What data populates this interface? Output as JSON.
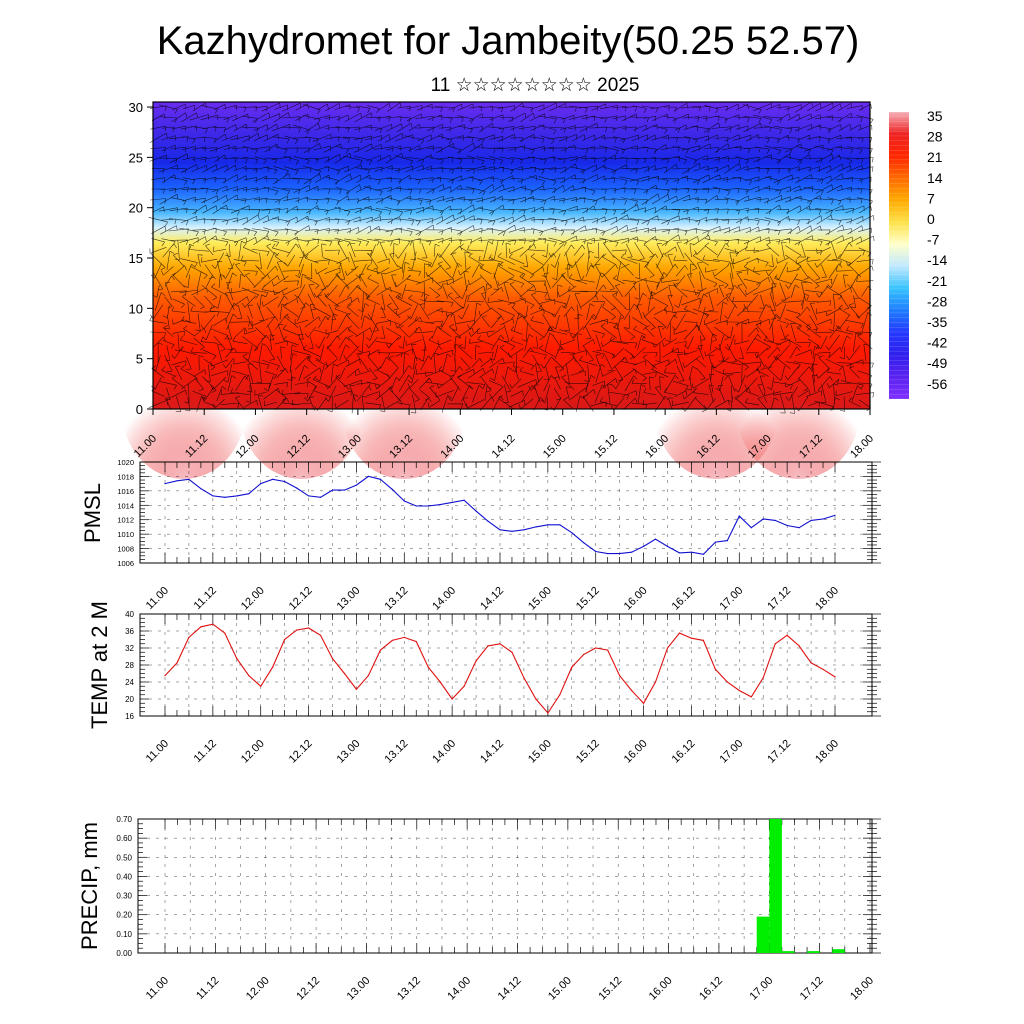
{
  "title": "Kazhydromet for Jambeity(50.25 52.57)",
  "subtitle": "11 ☆☆☆☆☆☆☆☆ 2025",
  "time_labels": [
    "11.00",
    "11.12",
    "12.00",
    "12.12",
    "13.00",
    "13.12",
    "14.00",
    "14.12",
    "15.00",
    "15.12",
    "16.00",
    "16.12",
    "17.00",
    "17.12",
    "18.00"
  ],
  "colors": {
    "pmsl_line": "#1010d0",
    "temp_line": "#e01010",
    "precip_bar": "#00ee00",
    "frame": "#000000"
  },
  "chart_data": [
    {
      "type": "heatmap",
      "name": "temperature-cross-section",
      "y_ticks": [
        "0",
        "5",
        "10",
        "15",
        "20",
        "25",
        "30"
      ],
      "ylim": [
        0,
        30.5
      ],
      "colorbar_labels": [
        "35",
        "28",
        "21",
        "14",
        "7",
        "0",
        "-7",
        "-14",
        "-21",
        "-28",
        "-35",
        "-42",
        "-49",
        "-56"
      ],
      "colorbar_stops": [
        "#f4b0b8",
        "#ee2222",
        "#ff2600",
        "#ff6a00",
        "#ffaa00",
        "#ffe24a",
        "#ffffcc",
        "#bfe8ff",
        "#36c2ff",
        "#1e7cff",
        "#2438ff",
        "#3020ee",
        "#5a22f0",
        "#8030ff"
      ],
      "profile": [
        {
          "z": 0,
          "color": "#d81818"
        },
        {
          "z": 6,
          "color": "#ff1a00"
        },
        {
          "z": 11,
          "color": "#ff5a00"
        },
        {
          "z": 14,
          "color": "#ffa500"
        },
        {
          "z": 16.5,
          "color": "#ffec5a"
        },
        {
          "z": 18,
          "color": "#d8f2ff"
        },
        {
          "z": 19.5,
          "color": "#4ab8ff"
        },
        {
          "z": 22,
          "color": "#1a60ff"
        },
        {
          "z": 24.5,
          "color": "#1828e8"
        },
        {
          "z": 27,
          "color": "#3a28e8"
        },
        {
          "z": 30.5,
          "color": "#6a2cf0"
        }
      ]
    },
    {
      "type": "line",
      "name": "pmsl",
      "ylabel": "PMSL",
      "y_ticks": [
        "1006",
        "1008",
        "1010",
        "1012",
        "1014",
        "1016",
        "1018",
        "1020"
      ],
      "ylim": [
        1006,
        1020
      ],
      "x_hours": [
        0,
        3,
        6,
        9,
        12,
        15,
        18,
        21,
        24,
        27,
        30,
        33,
        36,
        39,
        42,
        45,
        48,
        51,
        54,
        57,
        60,
        63,
        66,
        69,
        72,
        75,
        78,
        81,
        84,
        87,
        90,
        93,
        96,
        99,
        102,
        105,
        108,
        111,
        114,
        117,
        120,
        123,
        126,
        129,
        132,
        135,
        138,
        141,
        144,
        147,
        150,
        153,
        156,
        159,
        162,
        165,
        168
      ],
      "values": [
        1017.0,
        1017.4,
        1017.6,
        1016.3,
        1015.3,
        1015.1,
        1015.3,
        1015.6,
        1017.0,
        1017.6,
        1017.3,
        1016.4,
        1015.3,
        1015.1,
        1016.1,
        1016.1,
        1016.8,
        1018.0,
        1017.6,
        1016.2,
        1014.6,
        1013.9,
        1013.9,
        1014.1,
        1014.4,
        1014.7,
        1013.2,
        1011.8,
        1010.6,
        1010.4,
        1010.6,
        1011.0,
        1011.3,
        1011.3,
        1010.2,
        1008.8,
        1007.6,
        1007.3,
        1007.3,
        1007.5,
        1008.3,
        1009.3,
        1008.3,
        1007.4,
        1007.5,
        1007.2,
        1008.9,
        1009.1,
        1012.5,
        1010.9,
        1012.1,
        1011.9,
        1011.2,
        1010.9,
        1011.9,
        1012.1,
        1012.6
      ]
    },
    {
      "type": "line",
      "name": "temp-2m",
      "ylabel": "TEMP at 2 M",
      "y_ticks": [
        "16",
        "20",
        "24",
        "28",
        "32",
        "36",
        "40"
      ],
      "ylim": [
        16,
        40
      ],
      "x_hours": [
        0,
        3,
        6,
        9,
        12,
        15,
        18,
        21,
        24,
        27,
        30,
        33,
        36,
        39,
        42,
        45,
        48,
        51,
        54,
        57,
        60,
        63,
        66,
        69,
        72,
        75,
        78,
        81,
        84,
        87,
        90,
        93,
        96,
        99,
        102,
        105,
        108,
        111,
        114,
        117,
        120,
        123,
        126,
        129,
        132,
        135,
        138,
        141,
        144,
        147,
        150,
        153,
        156,
        159,
        162,
        165,
        168
      ],
      "values": [
        25.5,
        28.5,
        34.5,
        37.0,
        37.6,
        35.5,
        29.5,
        25.5,
        23.0,
        27.5,
        34.0,
        36.2,
        36.7,
        35.0,
        29.5,
        26.0,
        22.3,
        25.5,
        31.5,
        33.8,
        34.5,
        33.5,
        27.5,
        24.0,
        20.0,
        23.0,
        29.0,
        32.5,
        33.0,
        31.0,
        25.0,
        20.0,
        16.7,
        21.0,
        27.5,
        30.5,
        32.0,
        31.5,
        25.5,
        22.0,
        19.0,
        24.0,
        32.0,
        35.5,
        34.3,
        33.8,
        27.0,
        24.0,
        22.0,
        20.5,
        25.0,
        33.0,
        35.0,
        32.5,
        28.5,
        27.0,
        25.2
      ]
    },
    {
      "type": "bar",
      "name": "precip",
      "ylabel": "PRECIP, mm",
      "y_ticks": [
        "0.00",
        "0.10",
        "0.20",
        "0.30",
        "0.40",
        "0.50",
        "0.60",
        "0.70"
      ],
      "ylim": [
        0,
        0.7
      ],
      "bars": [
        {
          "x_hours": 142.5,
          "value": 0.19
        },
        {
          "x_hours": 145.5,
          "value": 0.7
        },
        {
          "x_hours": 148.5,
          "value": 0.01
        },
        {
          "x_hours": 154.5,
          "value": 0.01
        },
        {
          "x_hours": 160.5,
          "value": 0.02
        }
      ]
    }
  ]
}
